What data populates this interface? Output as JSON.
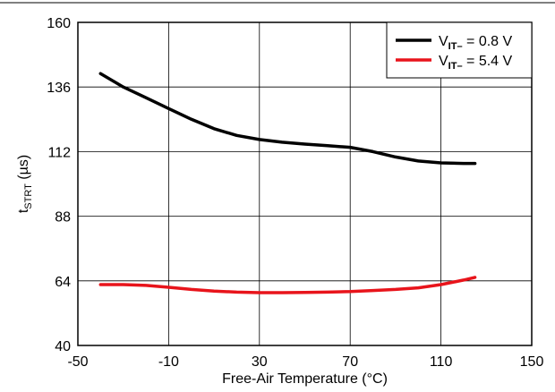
{
  "chart_data": {
    "type": "line",
    "xlabel": "Free-Air Temperature (°C)",
    "ylabel": {
      "main": "t",
      "sub": "STRT",
      "unit": " (µs)"
    },
    "xlim": [
      -50,
      150
    ],
    "ylim": [
      40,
      160
    ],
    "xticks": [
      -50,
      -10,
      30,
      70,
      110,
      150
    ],
    "yticks": [
      40,
      64,
      88,
      112,
      136,
      160
    ],
    "grid": true,
    "legend_position": "top-right",
    "series": [
      {
        "name": {
          "main": "V",
          "sub": "IT–",
          "rest": " = 0.8 V"
        },
        "color": "#000000",
        "x": [
          -40,
          -30,
          -20,
          -10,
          0,
          10,
          20,
          30,
          40,
          50,
          60,
          70,
          80,
          90,
          100,
          110,
          120,
          125
        ],
        "y": [
          141,
          136,
          132,
          128,
          124,
          120.5,
          118,
          116.5,
          115.5,
          114.8,
          114.2,
          113.6,
          112,
          110,
          108.5,
          107.8,
          107.6,
          107.6
        ]
      },
      {
        "name": {
          "main": "V",
          "sub": "IT–",
          "rest": " = 5.4 V"
        },
        "color": "#e8141b",
        "x": [
          -40,
          -30,
          -20,
          -10,
          0,
          10,
          20,
          30,
          40,
          50,
          60,
          70,
          80,
          90,
          100,
          110,
          120,
          125
        ],
        "y": [
          62.6,
          62.6,
          62.3,
          61.6,
          60.8,
          60.2,
          59.8,
          59.6,
          59.6,
          59.7,
          59.8,
          60,
          60.4,
          60.8,
          61.4,
          62.6,
          64.3,
          65.3
        ]
      }
    ]
  }
}
